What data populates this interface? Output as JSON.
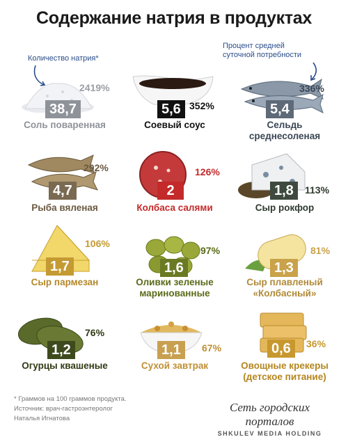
{
  "title": "Содержание натрия в продуктах",
  "note_left": "Количество натрия*",
  "note_right_line1": "Процент средней",
  "note_right_line2": "суточной потребности",
  "products": [
    {
      "value": "38,7",
      "pct": "2419%",
      "name1": "Соль поваренная",
      "name2": "",
      "badge_color": "#8e9299",
      "pct_color": "#9a9ea6",
      "name_color": "#8e9299"
    },
    {
      "value": "5,6",
      "pct": "352%",
      "name1": "Соевый соус",
      "name2": "",
      "badge_color": "#111111",
      "pct_color": "#111111",
      "name_color": "#111111"
    },
    {
      "value": "5,4",
      "pct": "336%",
      "name1": "Сельдь",
      "name2": "среднесоленая",
      "badge_color": "#5e6a78",
      "pct_color": "#3a4654",
      "name_color": "#3a4654"
    },
    {
      "value": "4,7",
      "pct": "292%",
      "name1": "Рыба вяленая",
      "name2": "",
      "badge_color": "#7a6a52",
      "pct_color": "#6a5a42",
      "name_color": "#6a5a42"
    },
    {
      "value": "2",
      "pct": "126%",
      "name1": "Колбаса салями",
      "name2": "",
      "badge_color": "#c42a2a",
      "pct_color": "#c42a2a",
      "name_color": "#c42a2a"
    },
    {
      "value": "1,8",
      "pct": "113%",
      "name1": "Сыр рокфор",
      "name2": "",
      "badge_color": "#3e4a3e",
      "pct_color": "#2e3a2e",
      "name_color": "#2e3a2e"
    },
    {
      "value": "1,7",
      "pct": "106%",
      "name1": "Сыр пармезан",
      "name2": "",
      "badge_color": "#c49a32",
      "pct_color": "#c49a32",
      "name_color": "#b4882a"
    },
    {
      "value": "1,6",
      "pct": "97%",
      "name1": "Оливки зеленые",
      "name2": "маринованные",
      "badge_color": "#6a7a24",
      "pct_color": "#5a6a18",
      "name_color": "#5a6a18"
    },
    {
      "value": "1,3",
      "pct": "81%",
      "name1": "Сыр плавленый",
      "name2": "«Колбасный»",
      "badge_color": "#c9a24a",
      "pct_color": "#c9a24a",
      "name_color": "#b08a38"
    },
    {
      "value": "1,2",
      "pct": "76%",
      "name1": "Огурцы квашеные",
      "name2": "",
      "badge_color": "#3e4a1e",
      "pct_color": "#2e3a14",
      "name_color": "#2e3a14"
    },
    {
      "value": "1,1",
      "pct": "67%",
      "name1": "Сухой завтрак",
      "name2": "",
      "badge_color": "#c8a050",
      "pct_color": "#c08f35",
      "name_color": "#c08f35"
    },
    {
      "value": "0,6",
      "pct": "36%",
      "name1": "Овощные крекеры",
      "name2": "(детское питание)",
      "badge_color": "#c8982e",
      "pct_color": "#c8982e",
      "name_color": "#b4861e"
    }
  ],
  "footnote_line1": "* Граммов на 100 граммов продукта.",
  "footnote_line2": "Источник: врач-гастроэнтеролог",
  "footnote_line3": "Наталья Игнатова",
  "brand_line1": "Сеть городских порталов",
  "brand_line2": "SHKULEV MEDIA HOLDING"
}
